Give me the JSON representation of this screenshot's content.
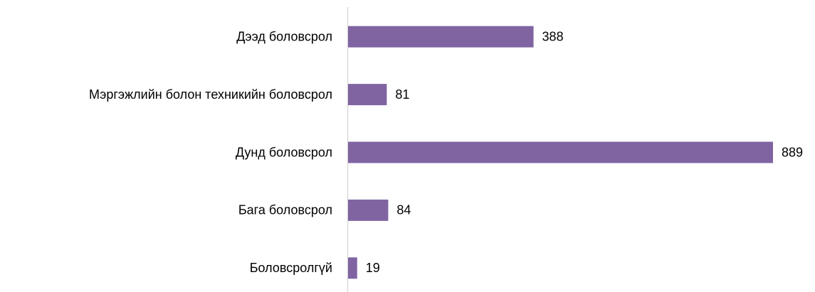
{
  "chart_data": {
    "type": "bar",
    "orientation": "horizontal",
    "categories": [
      "Дээд боловсрол",
      "Мэргэжлийн болон техникийн боловсрол",
      "Дунд боловсрол",
      "Бага боловсрол",
      "Боловсролгүй"
    ],
    "values": [
      388,
      81,
      889,
      84,
      19
    ],
    "color": "#8064a2"
  }
}
